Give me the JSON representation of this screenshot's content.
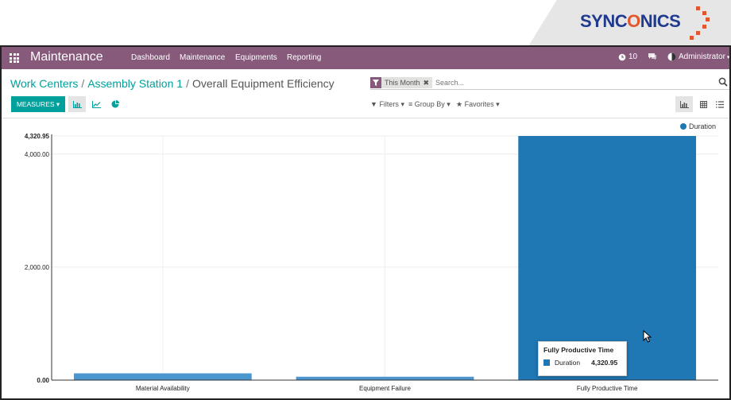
{
  "brand": {
    "name_pre": "SYNC",
    "name_x": "O",
    "name_post": "NICS"
  },
  "navbar": {
    "app_title": "Maintenance",
    "menus": [
      "Dashboard",
      "Maintenance",
      "Equipments",
      "Reporting"
    ],
    "messages_count": "10",
    "user_name": "Administrator"
  },
  "breadcrumb": {
    "items": [
      "Work Centers",
      "Assembly Station 1"
    ],
    "current": "Overall Equipment Efficiency",
    "separator": "/"
  },
  "search": {
    "facet_value": "This Month",
    "facet_remove": "✖",
    "placeholder": "Search..."
  },
  "toolbar": {
    "measures_label": "MEASURES ▾",
    "filters_label": "Filters ▾",
    "groupby_label": "Group By ▾",
    "favorites_label": "Favorites ▾"
  },
  "chart_data": {
    "type": "bar",
    "categories": [
      "Material Availability",
      "Equipment Failure",
      "Fully Productive Time"
    ],
    "series": [
      {
        "name": "Duration",
        "values": [
          120,
          60,
          4320.95
        ],
        "color": "#1f77b4"
      }
    ],
    "ylim": [
      0,
      4320.95
    ],
    "yticks": [
      "0.00",
      "2,000.00",
      "4,000.00",
      "4,320.95"
    ],
    "ytick_values": [
      0,
      2000,
      4000,
      4320.95
    ],
    "legend_position": "top-right",
    "grid": true
  },
  "tooltip": {
    "title": "Fully Productive Time",
    "label": "Duration",
    "value": "4,320.95"
  },
  "colors": {
    "navbar": "#875a7b",
    "accent": "#00a09d",
    "bar": "#1f77b4"
  }
}
